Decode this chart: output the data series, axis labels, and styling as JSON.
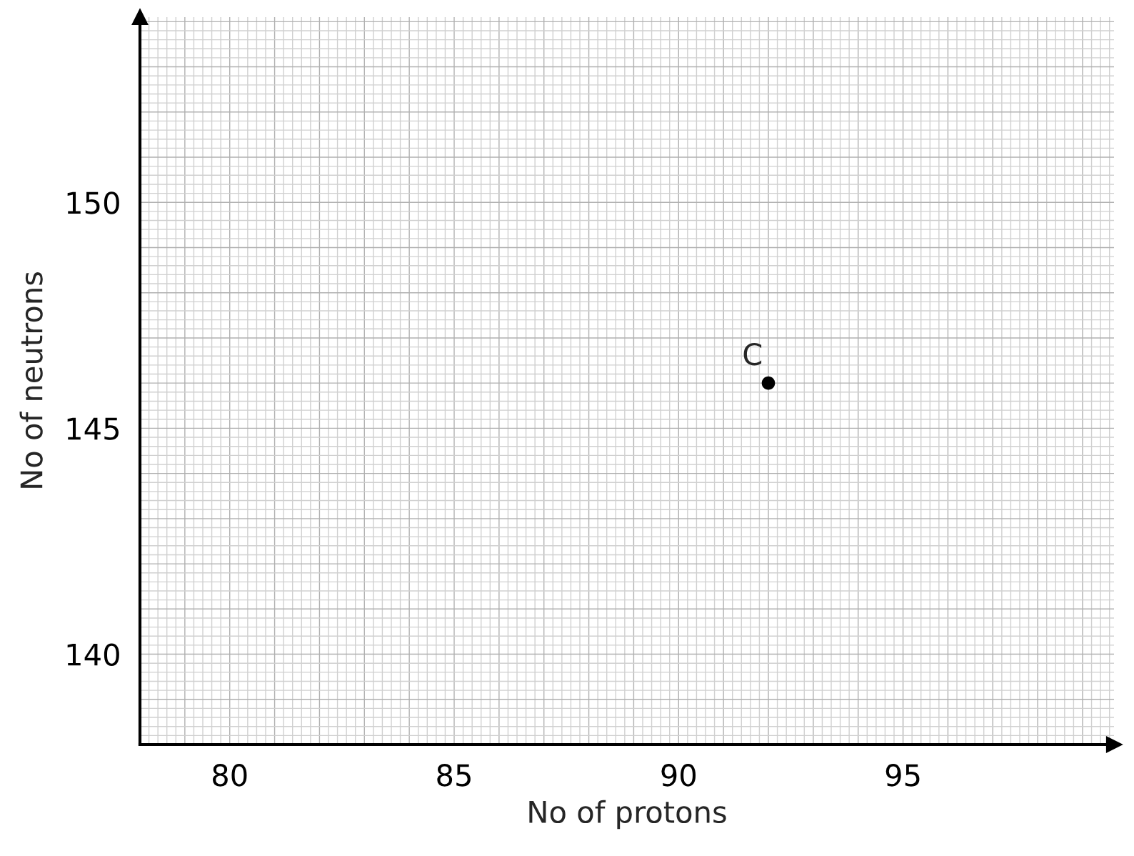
{
  "chart_data": {
    "type": "scatter",
    "xlabel": "No of protons",
    "ylabel": "No of neutrons",
    "x": [
      92
    ],
    "values": [
      146
    ],
    "color": "#000000",
    "marker": "circle",
    "annotations": [
      {
        "text": "C",
        "x": 92,
        "y": 146
      }
    ],
    "xlim": [
      78,
      99.7
    ],
    "ylim": [
      138,
      154.1
    ],
    "xticks": [
      80,
      85,
      90,
      95
    ],
    "yticks": [
      140,
      145,
      150
    ],
    "grid": true
  }
}
